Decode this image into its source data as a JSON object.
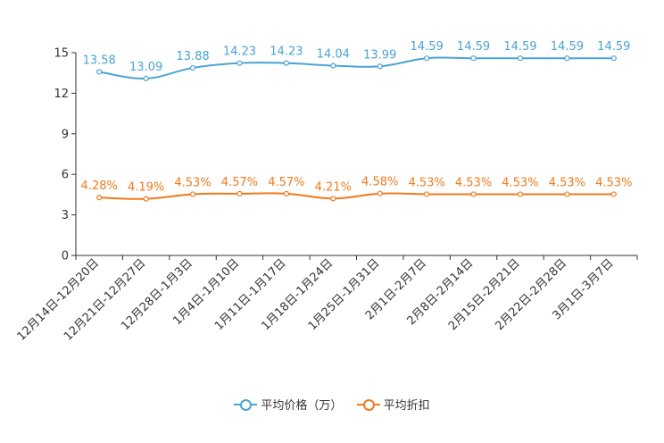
{
  "chart_data": {
    "type": "line",
    "categories": [
      "12月14日-12月20日",
      "12月21日-12月27日",
      "12月28日-1月3日",
      "1月4日-1月10日",
      "1月11日-1月17日",
      "1月18日-1月24日",
      "1月25日-1月31日",
      "2月1日-2月7日",
      "2月8日-2月14日",
      "2月15日-2月21日",
      "2月22日-2月28日",
      "3月1日-3月7日"
    ],
    "ylim": [
      0,
      15
    ],
    "yticks": [
      0,
      3,
      6,
      9,
      12,
      15
    ],
    "ytick_labels": [
      "0",
      "3",
      "6",
      "9",
      "12",
      "15"
    ],
    "series": [
      {
        "name": "平均价格（万）",
        "color": "#4aa3d3",
        "values": [
          13.58,
          13.09,
          13.88,
          14.23,
          14.23,
          14.04,
          13.99,
          14.59,
          14.59,
          14.59,
          14.59,
          14.59
        ],
        "labels": [
          "13.58",
          "13.09",
          "13.88",
          "14.23",
          "14.23",
          "14.04",
          "13.99",
          "14.59",
          "14.59",
          "14.59",
          "14.59",
          "14.59"
        ]
      },
      {
        "name": "平均折扣",
        "color": "#f07a1e",
        "values": [
          4.28,
          4.19,
          4.53,
          4.57,
          4.57,
          4.21,
          4.58,
          4.53,
          4.53,
          4.53,
          4.53,
          4.53
        ],
        "labels": [
          "4.28%",
          "4.19%",
          "4.53%",
          "4.57%",
          "4.57%",
          "4.21%",
          "4.58%",
          "4.53%",
          "4.53%",
          "4.53%",
          "4.53%",
          "4.53%"
        ]
      }
    ]
  }
}
